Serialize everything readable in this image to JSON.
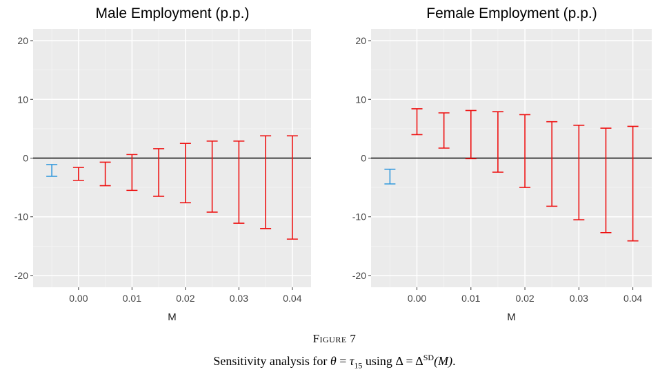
{
  "chart_data": [
    {
      "type": "errorbar",
      "title": "Male Employment (p.p.)",
      "xlabel": "M",
      "ylabel": "",
      "ylim": [
        -22,
        22
      ],
      "yticks": [
        -20,
        -10,
        0,
        10,
        20
      ],
      "ytick_labels": [
        "-20",
        "-10",
        "0",
        "10",
        "20"
      ],
      "xlim": [
        -0.0085,
        0.0435
      ],
      "xticks": [
        0.0,
        0.01,
        0.02,
        0.03,
        0.04
      ],
      "xtick_labels": [
        "0.00",
        "0.01",
        "0.02",
        "0.03",
        "0.04"
      ],
      "reference_line": 0,
      "grid": true,
      "series": [
        {
          "color": "#3399dd",
          "points": [
            {
              "x": -0.005,
              "lb": -3.1,
              "ub": -1.1
            }
          ]
        },
        {
          "color": "#ee1111",
          "points": [
            {
              "x": 0.0,
              "lb": -3.8,
              "ub": -1.6
            },
            {
              "x": 0.005,
              "lb": -4.7,
              "ub": -0.7
            },
            {
              "x": 0.01,
              "lb": -5.5,
              "ub": 0.6
            },
            {
              "x": 0.015,
              "lb": -6.5,
              "ub": 1.6
            },
            {
              "x": 0.02,
              "lb": -7.6,
              "ub": 2.5
            },
            {
              "x": 0.025,
              "lb": -9.2,
              "ub": 2.9
            },
            {
              "x": 0.03,
              "lb": -11.1,
              "ub": 2.9
            },
            {
              "x": 0.035,
              "lb": -12.0,
              "ub": 3.8
            },
            {
              "x": 0.04,
              "lb": -13.8,
              "ub": 3.8
            }
          ]
        }
      ]
    },
    {
      "type": "errorbar",
      "title": "Female Employment (p.p.)",
      "xlabel": "M",
      "ylabel": "",
      "ylim": [
        -22,
        22
      ],
      "yticks": [
        -20,
        -10,
        0,
        10,
        20
      ],
      "ytick_labels": [
        "-20",
        "-10",
        "0",
        "10",
        "20"
      ],
      "xlim": [
        -0.0085,
        0.0435
      ],
      "xticks": [
        0.0,
        0.01,
        0.02,
        0.03,
        0.04
      ],
      "xtick_labels": [
        "0.00",
        "0.01",
        "0.02",
        "0.03",
        "0.04"
      ],
      "reference_line": 0,
      "grid": true,
      "series": [
        {
          "color": "#3399dd",
          "points": [
            {
              "x": -0.005,
              "lb": -4.4,
              "ub": -1.9
            }
          ]
        },
        {
          "color": "#ee1111",
          "points": [
            {
              "x": 0.0,
              "lb": 4.0,
              "ub": 8.4
            },
            {
              "x": 0.005,
              "lb": 1.7,
              "ub": 7.7
            },
            {
              "x": 0.01,
              "lb": -0.1,
              "ub": 8.1
            },
            {
              "x": 0.015,
              "lb": -2.4,
              "ub": 7.9
            },
            {
              "x": 0.02,
              "lb": -5.0,
              "ub": 7.4
            },
            {
              "x": 0.025,
              "lb": -8.2,
              "ub": 6.2
            },
            {
              "x": 0.03,
              "lb": -10.5,
              "ub": 5.6
            },
            {
              "x": 0.035,
              "lb": -12.7,
              "ub": 5.1
            },
            {
              "x": 0.04,
              "lb": -14.1,
              "ub": 5.4
            }
          ]
        }
      ]
    }
  ],
  "caption": {
    "label": "Figure 7",
    "text_prefix": "Sensitivity analysis for ",
    "theta": "θ",
    "eq1": " = ",
    "tau": "τ",
    "tau_sub": "15",
    "text_mid": " using ",
    "delta1": "Δ",
    "eq2": " = ",
    "delta2": "Δ",
    "delta_sup": "SD",
    "arg": "(M)",
    "end": "."
  }
}
